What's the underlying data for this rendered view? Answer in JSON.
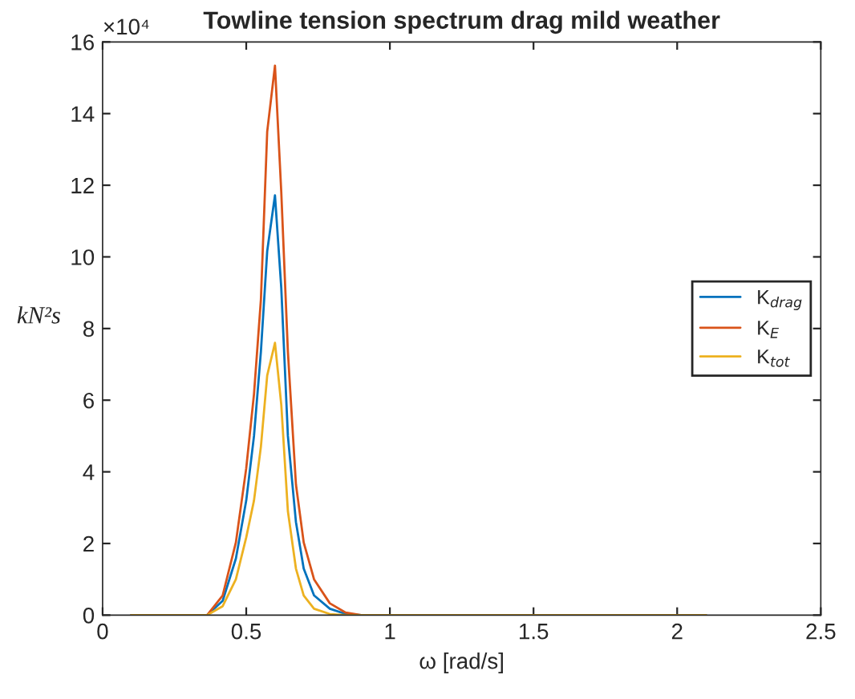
{
  "chart_data": {
    "type": "line",
    "title": "Towline tension spectrum drag mild weather",
    "xlabel": "ω [rad/s]",
    "ylabel": "kN²s",
    "annotations": [
      "×10⁴"
    ],
    "x": [
      0.1,
      0.364,
      0.418,
      0.464,
      0.5,
      0.527,
      0.551,
      0.573,
      0.6,
      0.622,
      0.645,
      0.673,
      0.7,
      0.736,
      0.791,
      0.846,
      0.9,
      2.1
    ],
    "series": [
      {
        "name": "K$_{drag}$",
        "color": "#0072bd",
        "values": [
          0,
          0,
          0.4,
          1.58,
          3.2,
          5.0,
          7.35,
          10.16,
          11.72,
          9.13,
          5.0,
          2.6,
          1.3,
          0.55,
          0.18,
          0.03,
          0,
          0
        ]
      },
      {
        "name": "K$_{E}$",
        "color": "#d95319",
        "values": [
          0,
          0,
          0.55,
          2.03,
          4.1,
          6.17,
          8.8,
          13.5,
          15.34,
          11.8,
          7.35,
          3.65,
          2.03,
          1.0,
          0.33,
          0.07,
          0,
          0
        ]
      },
      {
        "name": "K$_{tot}$",
        "color": "#edb120",
        "values": [
          0,
          0,
          0.25,
          1.0,
          2.17,
          3.2,
          4.7,
          6.69,
          7.6,
          5.87,
          2.9,
          1.3,
          0.55,
          0.18,
          0.03,
          0,
          0,
          0
        ]
      }
    ],
    "xlim": [
      0,
      2.5
    ],
    "xticks": [
      0,
      0.5,
      1,
      1.5,
      2,
      2.5
    ],
    "ylim": [
      0,
      16
    ],
    "yticks": [
      0,
      2,
      4,
      6,
      8,
      10,
      12,
      14,
      16
    ],
    "legend": "right",
    "grid": false,
    "marker": "none",
    "line_style": "solid"
  }
}
